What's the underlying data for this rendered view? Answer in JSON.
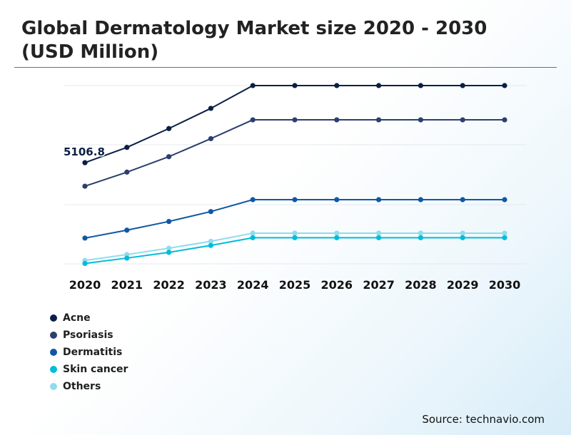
{
  "title": "Global Dermatology Market size 2020 - 2030 (USD Million)",
  "source": "Source: technavio.com",
  "chart_data": {
    "type": "line",
    "x": [
      "2020",
      "2021",
      "2022",
      "2023",
      "2024",
      "2025",
      "2026",
      "2027",
      "2028",
      "2029",
      "2030"
    ],
    "ylim": [
      0,
      9000
    ],
    "grid": true,
    "legend_position": "bottom-left",
    "annotation": {
      "text": "5106.8",
      "series": "Acne",
      "x": "2020"
    },
    "series": [
      {
        "name": "Acne",
        "color": "#0b1f44",
        "values": [
          5106.8,
          5880,
          6830,
          7850,
          9000,
          9000,
          9000,
          9000,
          9000,
          9000,
          9000
        ]
      },
      {
        "name": "Psoriasis",
        "color": "#2c3f6e",
        "values": [
          3920,
          4630,
          5410,
          6320,
          7270,
          7270,
          7270,
          7270,
          7270,
          7270,
          7270
        ]
      },
      {
        "name": "Dermatitis",
        "color": "#0f58a3",
        "values": [
          1300,
          1700,
          2140,
          2640,
          3240,
          3240,
          3240,
          3240,
          3240,
          3240,
          3240
        ]
      },
      {
        "name": "Skin cancer",
        "color": "#00bcd9",
        "values": [
          20,
          290,
          580,
          930,
          1320,
          1320,
          1320,
          1320,
          1320,
          1320,
          1320
        ]
      },
      {
        "name": "Others",
        "color": "#8fdcec",
        "values": [
          170,
          470,
          790,
          1140,
          1550,
          1550,
          1550,
          1550,
          1550,
          1550,
          1550
        ]
      }
    ]
  }
}
